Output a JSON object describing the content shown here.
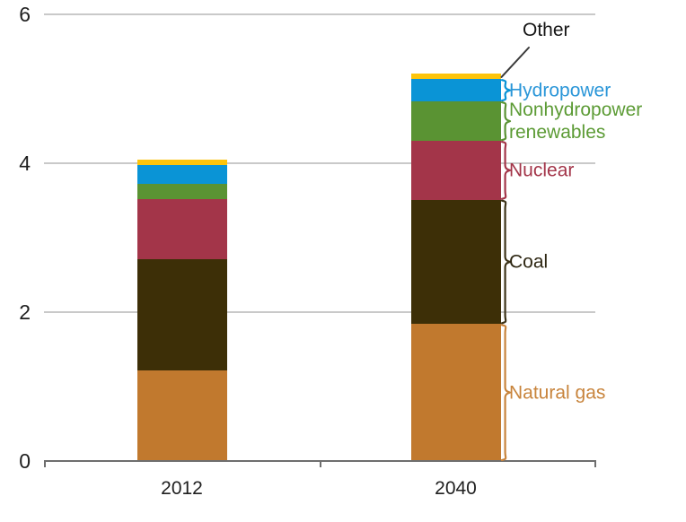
{
  "chart_data": {
    "type": "bar",
    "stacked": true,
    "stack_order": "bottom-to-top",
    "title": "",
    "xlabel": "",
    "ylabel": "",
    "categories": [
      "2012",
      "2040"
    ],
    "series": [
      {
        "name": "Natural gas",
        "values": [
          1.22,
          1.84
        ],
        "color": "#c1792e",
        "label_color": "#c8843c",
        "brace_color": "#c8843c"
      },
      {
        "name": "Coal",
        "values": [
          1.49,
          1.67
        ],
        "color": "#3d2f07",
        "label_color": "#2e2713",
        "brace_color": "#3c3318"
      },
      {
        "name": "Nuclear",
        "values": [
          0.81,
          0.79
        ],
        "color": "#a33549",
        "label_color": "#a33549",
        "brace_color": "#a33549"
      },
      {
        "name": "Nonhydropower renewables",
        "values": [
          0.2,
          0.53
        ],
        "color": "#5a9333",
        "label_color": "#5c9b35",
        "brace_color": "#5a9333"
      },
      {
        "name": "Hydropower",
        "values": [
          0.26,
          0.3
        ],
        "color": "#0a94d6",
        "label_color": "#2a96d8",
        "brace_color": "#0a94d6"
      },
      {
        "name": "Other",
        "values": [
          0.07,
          0.08
        ],
        "color": "#fdc40b",
        "label_color": "#141414",
        "pointer_color": "#3a3a3a"
      }
    ],
    "totals": [
      4.05,
      5.21
    ],
    "ylim": [
      0,
      6
    ],
    "yticks": [
      0,
      2,
      4,
      6
    ],
    "grid": true,
    "grid_color": "#c9c9c9",
    "axis_color": "#6e6e6e",
    "tick_text_color": "#1f1f1f",
    "legend_position": "right-annotations",
    "annotation_style": "braces",
    "annotated_category": "2040"
  }
}
